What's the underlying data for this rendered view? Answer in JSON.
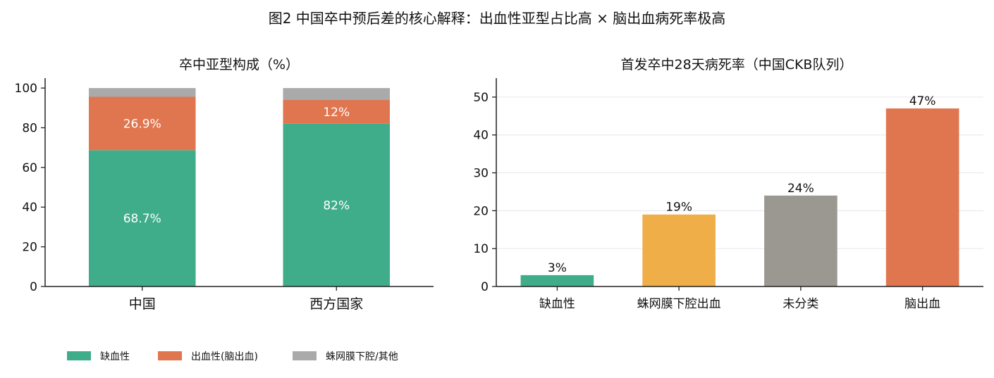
{
  "figure_title": "图2  中国卒中预后差的核心解释：出血性亚型占比高 × 脑出血病死率极高",
  "colors": {
    "ischemic": "#3fad8a",
    "hemorrhagic": "#e07650",
    "other": "#aaaaaa",
    "sah": "#f0ae48",
    "unclassified": "#9b9892"
  },
  "chart_data": [
    {
      "type": "bar",
      "stacked": true,
      "title": "卒中亚型构成（%）",
      "categories": [
        "中国",
        "西方国家"
      ],
      "series": [
        {
          "name": "缺血性",
          "values": [
            68.7,
            82
          ],
          "color_key": "ischemic",
          "labels": [
            "68.7%",
            "82%"
          ]
        },
        {
          "name": "出血性(脑出血)",
          "values": [
            26.9,
            12
          ],
          "color_key": "hemorrhagic",
          "labels": [
            "26.9%",
            "12%"
          ]
        },
        {
          "name": "蛛网膜下腔/其他",
          "values": [
            4.4,
            6
          ],
          "color_key": "other",
          "labels": [
            "",
            ""
          ]
        }
      ],
      "ylim": [
        0,
        105
      ],
      "yticks": [
        0,
        20,
        40,
        60,
        80,
        100
      ],
      "legend_position": "bottom-left"
    },
    {
      "type": "bar",
      "title": "首发卒中28天病死率（中国CKB队列）",
      "categories": [
        "缺血性",
        "蛛网膜下腔出血",
        "未分类",
        "脑出血"
      ],
      "values": [
        3,
        19,
        24,
        47
      ],
      "labels": [
        "3%",
        "19%",
        "24%",
        "47%"
      ],
      "color_keys": [
        "ischemic",
        "sah",
        "unclassified",
        "hemorrhagic"
      ],
      "ylim": [
        0,
        55
      ],
      "yticks": [
        0,
        10,
        20,
        30,
        40,
        50
      ],
      "grid": "horizontal"
    }
  ]
}
